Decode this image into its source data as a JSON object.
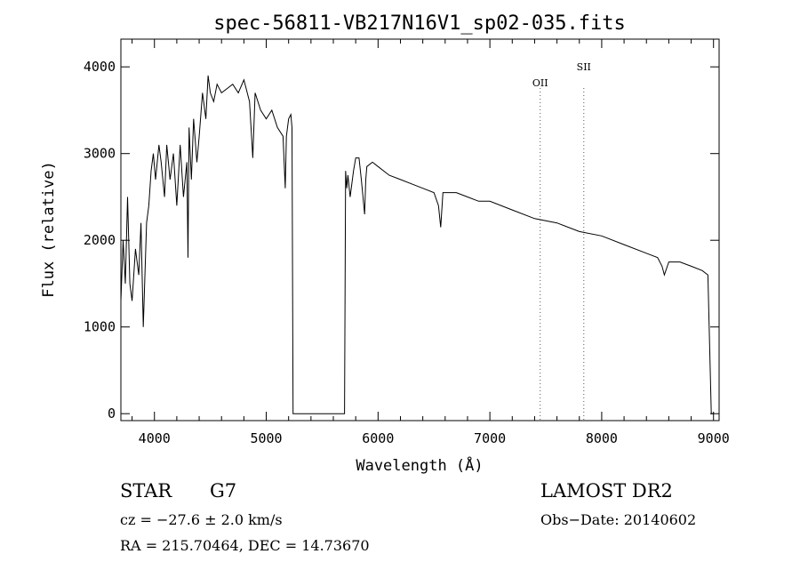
{
  "chart_data": {
    "type": "line",
    "title": "spec-56811-VB217N16V1_sp02-035.fits",
    "xlabel": "Wavelength (Å)",
    "ylabel": "Flux (relative)",
    "xlim": [
      3700,
      9050
    ],
    "ylim": [
      -80,
      4320
    ],
    "x_ticks": [
      4000,
      5000,
      6000,
      7000,
      8000,
      9000
    ],
    "y_ticks": [
      0,
      1000,
      2000,
      3000,
      4000
    ],
    "grid": false,
    "lines": [
      {
        "label": "OII",
        "x": 7450
      },
      {
        "label": "SII",
        "x": 7840
      }
    ],
    "series": [
      {
        "x": [
          3700,
          3720,
          3740,
          3760,
          3780,
          3800,
          3830,
          3860,
          3880,
          3900,
          3930,
          3950,
          3970,
          3990,
          4010,
          4040,
          4060,
          4090,
          4110,
          4140,
          4170,
          4200,
          4230,
          4260,
          4290,
          4300,
          4310,
          4330,
          4350,
          4380,
          4400,
          4430,
          4460,
          4480,
          4500,
          4530,
          4560,
          4600,
          4650,
          4700,
          4750,
          4800,
          4850,
          4880,
          4900,
          4950,
          5000,
          5050,
          5100,
          5150,
          5170,
          5180,
          5200,
          5220,
          5230,
          5240,
          5250,
          5700,
          5710,
          5720,
          5730,
          5750,
          5780,
          5800,
          5830,
          5850,
          5880,
          5890,
          5900,
          5950,
          6000,
          6100,
          6200,
          6300,
          6400,
          6500,
          6540,
          6560,
          6580,
          6700,
          6800,
          6900,
          7000,
          7200,
          7400,
          7600,
          7800,
          8000,
          8200,
          8400,
          8500,
          8540,
          8560,
          8600,
          8700,
          8800,
          8900,
          8950,
          8980,
          9000
        ],
        "y": [
          1300,
          2000,
          1500,
          2500,
          1500,
          1300,
          1900,
          1600,
          2200,
          1000,
          2200,
          2400,
          2800,
          3000,
          2700,
          3100,
          2900,
          2500,
          3100,
          2700,
          3000,
          2400,
          3100,
          2500,
          2900,
          1800,
          3300,
          2700,
          3400,
          2900,
          3200,
          3700,
          3400,
          3900,
          3700,
          3600,
          3800,
          3700,
          3750,
          3800,
          3700,
          3850,
          3600,
          2950,
          3700,
          3500,
          3400,
          3500,
          3300,
          3200,
          2600,
          3200,
          3400,
          3450,
          3300,
          0,
          0,
          0,
          2800,
          2600,
          2750,
          2500,
          2800,
          2950,
          2950,
          2700,
          2300,
          2700,
          2850,
          2900,
          2850,
          2750,
          2700,
          2650,
          2600,
          2550,
          2400,
          2150,
          2550,
          2550,
          2500,
          2450,
          2450,
          2350,
          2250,
          2200,
          2100,
          2050,
          1950,
          1850,
          1800,
          1700,
          1600,
          1750,
          1750,
          1700,
          1650,
          1600,
          0,
          0
        ]
      }
    ]
  },
  "info": {
    "object": "STAR",
    "subclass": "G7",
    "survey": "LAMOST DR2",
    "cz": "cz = −27.6 ± 2.0 km/s",
    "obs_date": "Obs−Date: 20140602",
    "radec": "RA = 215.70464, DEC =  14.73670"
  }
}
